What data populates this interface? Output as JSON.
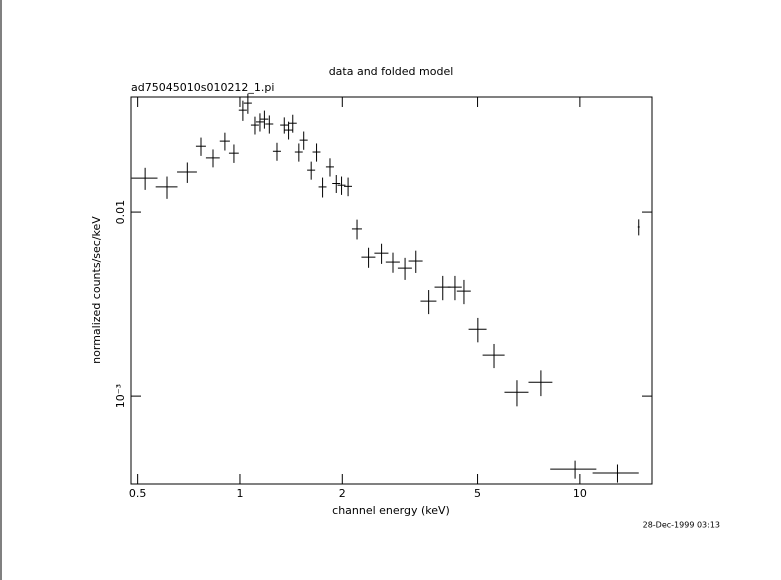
{
  "chart_data": {
    "type": "errorcross",
    "title": "data and folded model",
    "subtitle": "ad75045010s010212_1.pi",
    "x_label": "channel energy (keV)",
    "y_label": "normalized counts/sec/keV",
    "timestamp": "28-Dec-1999 03:13",
    "x_log": true,
    "y_log": true,
    "color": "#000000",
    "xlim": [
      0.478,
      16.3
    ],
    "ylim": [
      0.000333,
      0.0422
    ],
    "xticks": [
      0.5,
      1,
      2,
      5,
      10
    ],
    "yticks": [
      {
        "value": 0.001,
        "label": "10⁻³"
      },
      0.01
    ],
    "x": [
      0.526,
      0.61,
      0.7,
      0.768,
      0.833,
      0.903,
      0.96,
      1.02,
      1.055,
      1.107,
      1.145,
      1.18,
      1.22,
      1.285,
      1.35,
      1.39,
      1.43,
      1.49,
      1.54,
      1.62,
      1.68,
      1.75,
      1.84,
      1.92,
      1.99,
      2.08,
      2.21,
      2.39,
      2.61,
      2.82,
      3.06,
      3.29,
      3.59,
      3.95,
      4.29,
      4.56,
      5.01,
      5.59,
      6.53,
      7.68,
      9.68,
      12.9,
      14.9
    ],
    "xerr": [
      0.046,
      0.045,
      0.047,
      0.026,
      0.039,
      0.031,
      0.032,
      0.028,
      0.029,
      0.03,
      0.031,
      0.032,
      0.033,
      0.035,
      0.037,
      0.038,
      0.039,
      0.04,
      0.042,
      0.044,
      0.045,
      0.047,
      0.05,
      0.052,
      0.054,
      0.056,
      0.075,
      0.113,
      0.124,
      0.134,
      0.145,
      0.156,
      0.194,
      0.214,
      0.203,
      0.216,
      0.305,
      0.416,
      0.53,
      0.62,
      1.5,
      2.0,
      0.1
    ],
    "values": [
      0.0153,
      0.0137,
      0.0165,
      0.0228,
      0.0197,
      0.0243,
      0.0209,
      0.0358,
      0.0391,
      0.0297,
      0.0309,
      0.032,
      0.0301,
      0.0214,
      0.0297,
      0.0279,
      0.0304,
      0.0212,
      0.0246,
      0.0169,
      0.0212,
      0.0137,
      0.0176,
      0.0143,
      0.014,
      0.0138,
      0.0081,
      0.00569,
      0.00598,
      0.00535,
      0.00496,
      0.00542,
      0.00328,
      0.00391,
      0.00391,
      0.00372,
      0.00231,
      0.00167,
      0.00105,
      0.00119,
      0.000401,
      0.000382,
      0.0083
    ],
    "yerr": [
      0.0021,
      0.0019,
      0.0021,
      0.0026,
      0.0022,
      0.0027,
      0.0024,
      0.0045,
      0.0049,
      0.0033,
      0.0035,
      0.0036,
      0.0034,
      0.0024,
      0.003,
      0.0031,
      0.0034,
      0.0024,
      0.0028,
      0.0019,
      0.0024,
      0.0017,
      0.002,
      0.0016,
      0.0016,
      0.0016,
      0.001,
      0.00071,
      0.00075,
      0.00067,
      0.00068,
      0.00075,
      0.00049,
      0.00059,
      0.00059,
      0.00056,
      0.00035,
      0.00025,
      0.00017,
      0.00019,
      4.5e-05,
      4.3e-05,
      0.00083
    ]
  }
}
